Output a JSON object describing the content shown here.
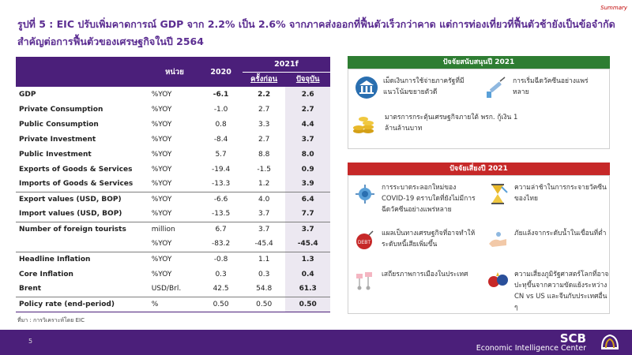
{
  "summary_label": "Summary",
  "title": "รูปที่ 5 : EIC ปรับเพิ่มคาดการณ์ GDP จาก 2.2% เป็น 2.6% จากภาคส่งออกที่ฟื้นตัวเร็วกว่าคาด แต่การท่องเที่ยวที่ฟื้นตัวช้ายังเป็นข้อจำกัดสำคัญต่อการฟื้นตัวของเศรษฐกิจในปี 2564",
  "table": {
    "header": {
      "unit": "หน่วย",
      "y2020": "2020",
      "y2021f": "2021f",
      "prev": "ครั้งก่อน",
      "cur": "ปัจจุบัน"
    },
    "rows": [
      {
        "label": "GDP",
        "unit": "%YOY",
        "y2020": "-6.1",
        "prev": "2.2",
        "cur": "2.6"
      },
      {
        "label": "Private Consumption",
        "unit": "%YOY",
        "y2020": "-1.0",
        "prev": "2.7",
        "cur": "2.7"
      },
      {
        "label": "Public Consumption",
        "unit": "%YOY",
        "y2020": "0.8",
        "prev": "3.3",
        "cur": "4.4"
      },
      {
        "label": "Private Investment",
        "unit": "%YOY",
        "y2020": "-8.4",
        "prev": "2.7",
        "cur": "3.7"
      },
      {
        "label": "Public Investment",
        "unit": "%YOY",
        "y2020": "5.7",
        "prev": "8.8",
        "cur": "8.0"
      },
      {
        "label": "Exports of Goods & Services",
        "unit": "%YOY",
        "y2020": "-19.4",
        "prev": "-1.5",
        "cur": "0.9"
      },
      {
        "label": "Imports of Goods & Services",
        "unit": "%YOY",
        "y2020": "-13.3",
        "prev": "1.2",
        "cur": "3.9"
      },
      {
        "label": "Export values (USD, BOP)",
        "unit": "%YOY",
        "y2020": "-6.6",
        "prev": "4.0",
        "cur": "6.4"
      },
      {
        "label": "Import values (USD, BOP)",
        "unit": "%YOY",
        "y2020": "-13.5",
        "prev": "3.7",
        "cur": "7.7"
      },
      {
        "label": "Number of foreign tourists",
        "unit": "million",
        "y2020": "6.7",
        "prev": "3.7",
        "cur": "3.7"
      },
      {
        "label": "",
        "unit": "%YOY",
        "y2020": "-83.2",
        "prev": "-45.4",
        "cur": "-45.4"
      },
      {
        "label": "Headline Inflation",
        "unit": "%YOY",
        "y2020": "-0.8",
        "prev": "1.1",
        "cur": "1.3"
      },
      {
        "label": "Core Inflation",
        "unit": "%YOY",
        "y2020": "0.3",
        "prev": "0.3",
        "cur": "0.4"
      },
      {
        "label": "Brent",
        "unit": "USD/Brl.",
        "y2020": "42.5",
        "prev": "54.8",
        "cur": "61.3"
      },
      {
        "label": "Policy rate (end-period)",
        "unit": "%",
        "y2020": "0.50",
        "prev": "0.50",
        "cur": "0.50"
      }
    ]
  },
  "source": "ที่มา : การวิเคราะห์โดย EIC",
  "support": {
    "header": "ปัจจัยสนับสนุนปี 2021",
    "items": [
      {
        "icon": "bank-icon",
        "text": "เม็ดเงินการใช้จ่ายภาครัฐที่มีแนวโน้มขยายตัวดี"
      },
      {
        "icon": "vaccine-icon",
        "text": "การเริ่มฉีดวัคซีนอย่างแพร่หลาย"
      },
      {
        "icon": "coins-icon",
        "text": "มาตรการกระตุ้นเศรษฐกิจภายใต้ พรก. กู้เงิน 1 ล้านล้านบาท"
      }
    ]
  },
  "risk": {
    "header": "ปัจจัยเสี่ยงปี 2021",
    "items": [
      {
        "icon": "virus-icon",
        "text": "การระบาดระลอกใหม่ของ COVID-19 ตราบใดที่ยังไม่มีการฉีดวัคซีนอย่างแพร่หลาย"
      },
      {
        "icon": "hourglass-icon",
        "text": "ความล่าช้าในการกระจายวัคซีนของไทย"
      },
      {
        "icon": "debt-bomb-icon",
        "text": "แผลเป็นทางเศรษฐกิจที่อาจทำให้ระดับหนี้เสียเพิ่มขึ้น"
      },
      {
        "icon": "hand-water-icon",
        "text": "ภัยแล้งจากระดับน้ำในเขื่อนที่ต่ำ"
      },
      {
        "icon": "protest-icon",
        "text": "เสถียรภาพการเมืองในประเทศ"
      },
      {
        "icon": "tradewar-icon",
        "text": "ความเสี่ยงภูมิรัฐศาสตร์โลกที่อาจปะทุขึ้นจากความขัดแย้งระหว่าง CN vs US และจีนกับประเทศอื่น ๆ"
      }
    ]
  },
  "footer": {
    "page": "5",
    "brand": "SCB",
    "center": "Economic Intelligence Center"
  },
  "colors": {
    "purple": "#4b1f7a",
    "green": "#2e7d32",
    "red": "#c62828",
    "gold": "#d4a017"
  }
}
